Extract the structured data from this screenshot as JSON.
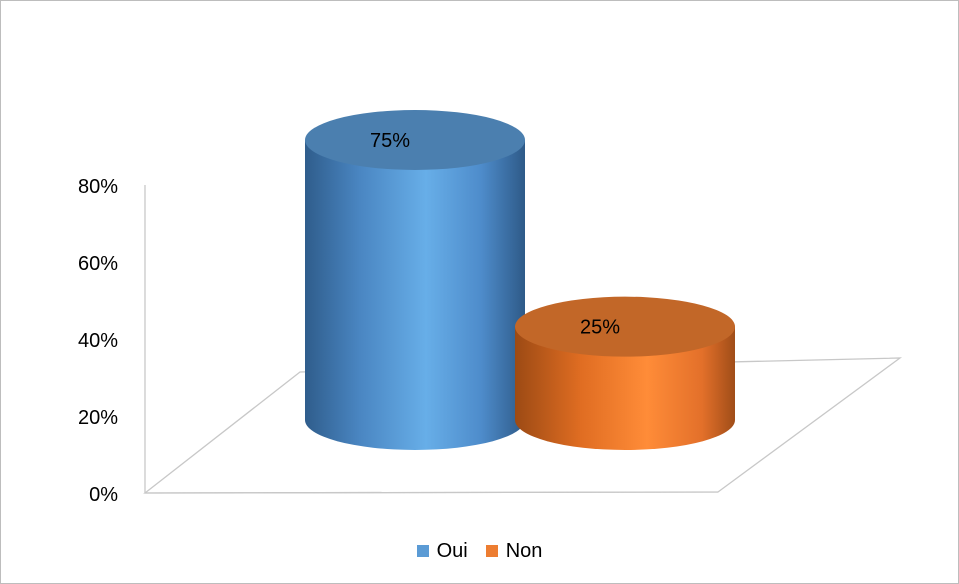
{
  "chart_data": {
    "type": "bar",
    "style": "3d-cylinder",
    "categories": [
      "Oui",
      "Non"
    ],
    "values": [
      75,
      25
    ],
    "data_labels": [
      "75%",
      "25%"
    ],
    "ylim": [
      0,
      80
    ],
    "yticks": [
      "0%",
      "20%",
      "40%",
      "60%",
      "80%"
    ],
    "legend": {
      "position": "bottom",
      "entries": [
        "Oui",
        "Non"
      ]
    },
    "colors": {
      "Oui": "#5b9bd5",
      "Non": "#ed7d31"
    },
    "title": "",
    "xlabel": "",
    "ylabel": "",
    "grid": false
  }
}
